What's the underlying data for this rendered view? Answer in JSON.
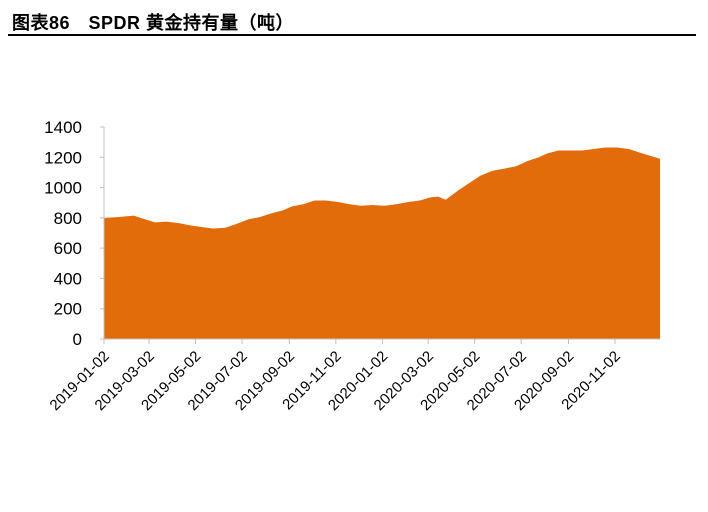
{
  "figure": {
    "title": "图表86　SPDR 黄金持有量（吨）"
  },
  "colors": {
    "area": "#E36C0A",
    "axis": "#BFBFBF",
    "text": "#000000"
  },
  "chart_data": {
    "type": "area",
    "title": "SPDR 黄金持有量（吨）",
    "xlabel": "",
    "ylabel": "",
    "ylim": [
      0,
      1400
    ],
    "yticks": [
      0,
      200,
      400,
      600,
      800,
      1000,
      1200,
      1400
    ],
    "xlim": [
      "2019-01-02",
      "2020-12-31"
    ],
    "xticks": [
      "2019-01-02",
      "2019-03-02",
      "2019-05-02",
      "2019-07-02",
      "2019-09-02",
      "2019-11-02",
      "2020-01-02",
      "2020-03-02",
      "2020-05-02",
      "2020-07-02",
      "2020-09-02",
      "2020-11-02"
    ],
    "grid": false,
    "legend": "none",
    "series": [
      {
        "x": [
          "2019-01-02",
          "2019-01-20",
          "2019-02-10",
          "2019-02-25",
          "2019-03-10",
          "2019-03-25",
          "2019-04-10",
          "2019-04-25",
          "2019-05-10",
          "2019-05-25",
          "2019-06-10",
          "2019-06-25",
          "2019-07-10",
          "2019-07-25",
          "2019-08-10",
          "2019-08-25",
          "2019-09-05",
          "2019-09-20",
          "2019-10-05",
          "2019-10-20",
          "2019-11-05",
          "2019-11-20",
          "2019-12-05",
          "2019-12-20",
          "2020-01-05",
          "2020-01-20",
          "2020-02-05",
          "2020-02-20",
          "2020-03-05",
          "2020-03-15",
          "2020-03-25",
          "2020-04-10",
          "2020-04-25",
          "2020-05-10",
          "2020-05-25",
          "2020-06-10",
          "2020-06-25",
          "2020-07-10",
          "2020-07-25",
          "2020-08-05",
          "2020-08-20",
          "2020-09-05",
          "2020-09-20",
          "2020-10-05",
          "2020-10-20",
          "2020-11-05",
          "2020-11-20",
          "2020-12-05",
          "2020-12-31"
        ],
        "values": [
          800,
          805,
          815,
          790,
          770,
          775,
          765,
          750,
          740,
          730,
          735,
          760,
          790,
          805,
          830,
          850,
          875,
          890,
          915,
          915,
          905,
          890,
          880,
          885,
          880,
          890,
          905,
          915,
          935,
          940,
          920,
          980,
          1030,
          1080,
          1110,
          1125,
          1140,
          1175,
          1200,
          1225,
          1245,
          1245,
          1245,
          1255,
          1265,
          1265,
          1255,
          1230,
          1190
        ]
      }
    ]
  }
}
